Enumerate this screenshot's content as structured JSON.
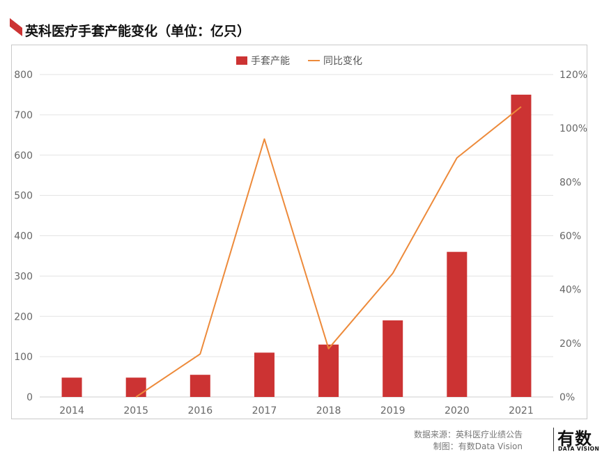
{
  "title": "英科医疗手套产能变化（单位：亿只）",
  "chart_data": {
    "type": "bar",
    "categories": [
      "2014",
      "2015",
      "2016",
      "2017",
      "2018",
      "2019",
      "2020",
      "2021"
    ],
    "series": [
      {
        "name": "手套产能",
        "type": "bar",
        "axis": "left",
        "values": [
          48,
          48,
          55,
          110,
          130,
          190,
          360,
          750
        ]
      },
      {
        "name": "同比变化",
        "type": "line",
        "axis": "right",
        "unit": "%",
        "values": [
          null,
          0,
          16,
          96,
          18,
          46,
          89,
          108
        ]
      }
    ],
    "y_left": {
      "ylim": [
        0,
        800
      ],
      "ticks": [
        "0",
        "100",
        "200",
        "300",
        "400",
        "500",
        "600",
        "700",
        "800"
      ]
    },
    "y_right": {
      "ylim": [
        0,
        120
      ],
      "ticks": [
        "0%",
        "20%",
        "40%",
        "60%",
        "80%",
        "100%",
        "120%"
      ]
    },
    "legend": {
      "placement": "top-center"
    },
    "grid": true,
    "colors": {
      "bar": "#cc3333",
      "line": "#ed8a3a",
      "axis_text": "#666666",
      "grid": "#e3e3e3"
    }
  },
  "footer": {
    "source": "数据来源：英科医疗业绩公告",
    "credit": "制图：有数Data Vision",
    "brand": "有数",
    "brand_sub": "DATA VISION"
  },
  "colors": {
    "title_mark": "#cc3333"
  }
}
